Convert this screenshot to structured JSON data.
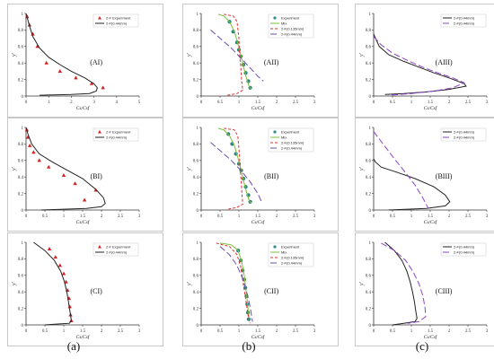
{
  "column_labels": [
    "(a)",
    "(b)",
    "(c)"
  ],
  "chart_data": [
    {
      "id": "AI",
      "type": "line",
      "panel_label": "(AI)",
      "xlabel": "Cs/Csf",
      "ylabel": "y'",
      "xlim": [
        0,
        5
      ],
      "ylim": [
        0,
        1
      ],
      "x_ticks": [
        "0",
        "1",
        "2",
        "3",
        "4",
        "5"
      ],
      "y_ticks": [
        "0",
        "0.2",
        "0.4",
        "0.6",
        "0.8",
        "1"
      ],
      "legend": "top-left",
      "series": [
        {
          "name": "2-F Experiment",
          "kind": "marker",
          "marker": "triangle",
          "color": "#d62020",
          "x": [
            0.05,
            0.15,
            0.3,
            0.5,
            0.9,
            1.5,
            2.2,
            2.9,
            3.4
          ],
          "y": [
            0.96,
            0.86,
            0.75,
            0.6,
            0.4,
            0.3,
            0.22,
            0.15,
            0.1
          ]
        },
        {
          "name": "2-F(0.44mm)",
          "kind": "line",
          "color": "#222222",
          "x": [
            0.0,
            0.05,
            0.15,
            0.3,
            0.6,
            1.0,
            1.5,
            2.0,
            2.6,
            3.0,
            3.15,
            3.1,
            2.8,
            2.0,
            0.6
          ],
          "y": [
            1.0,
            0.95,
            0.85,
            0.72,
            0.58,
            0.47,
            0.38,
            0.3,
            0.22,
            0.15,
            0.1,
            0.06,
            0.03,
            0.02,
            0.01
          ]
        }
      ]
    },
    {
      "id": "AII",
      "type": "line",
      "panel_label": "(AII)",
      "xlabel": "Cs/Csf",
      "ylabel": "y'",
      "xlim": [
        0,
        3
      ],
      "ylim": [
        0,
        1
      ],
      "x_ticks": [
        "0",
        "0.5",
        "1",
        "1.5",
        "2",
        "2.5",
        "3"
      ],
      "y_ticks": [
        "0",
        "0.2",
        "0.4",
        "0.6",
        "0.8",
        "1"
      ],
      "legend": "top-right",
      "series": [
        {
          "name": "Experiment",
          "kind": "marker",
          "marker": "circle",
          "color": "#2a8f88",
          "x": [
            0.75,
            0.85,
            0.95,
            1.0,
            1.05,
            1.12,
            1.18,
            1.25,
            1.3
          ],
          "y": [
            0.9,
            0.78,
            0.65,
            0.56,
            0.48,
            0.38,
            0.28,
            0.18,
            0.1
          ]
        },
        {
          "name": "Mix",
          "kind": "line",
          "color": "#7cbf3a",
          "x": [
            0.45,
            0.6,
            0.75,
            0.88,
            0.97,
            1.05,
            1.12,
            1.2,
            1.27,
            1.33
          ],
          "y": [
            0.99,
            0.97,
            0.9,
            0.78,
            0.64,
            0.5,
            0.36,
            0.22,
            0.12,
            0.08
          ]
        },
        {
          "name": "2-F(0.135mm)",
          "kind": "line",
          "color": "#e03030",
          "dash": "3,2",
          "x": [
            0.6,
            0.85,
            0.95,
            1.0,
            1.02,
            1.05,
            1.07,
            1.1,
            0.95,
            0.7
          ],
          "y": [
            0.99,
            0.97,
            0.9,
            0.7,
            0.5,
            0.35,
            0.2,
            0.07,
            0.03,
            0.01
          ]
        },
        {
          "name": "2-F(0.44mm)",
          "kind": "line",
          "color": "#6a4bb0",
          "dash": "7,3",
          "x": [
            0.25,
            0.5,
            0.8,
            1.05,
            1.3,
            1.5,
            1.65
          ],
          "y": [
            0.8,
            0.7,
            0.58,
            0.46,
            0.34,
            0.24,
            0.18
          ]
        }
      ]
    },
    {
      "id": "AIII",
      "type": "line",
      "panel_label": "(AIII)",
      "xlabel": "Cs/Csf",
      "ylabel": "y'",
      "xlim": [
        0,
        3
      ],
      "ylim": [
        0,
        1
      ],
      "x_ticks": [
        "0",
        "0.5",
        "1",
        "1.5",
        "2",
        "2.5",
        "3"
      ],
      "y_ticks": [
        "0",
        "0.2",
        "0.4",
        "0.6",
        "0.8",
        "1"
      ],
      "legend": "top-right",
      "series": [
        {
          "name": "2-F(0.44mm)",
          "kind": "line",
          "color": "#222222",
          "x": [
            0.0,
            0.15,
            0.4,
            0.8,
            1.2,
            1.6,
            2.0,
            2.4,
            2.45,
            2.0,
            1.4,
            0.8,
            0.3
          ],
          "y": [
            0.75,
            0.6,
            0.5,
            0.42,
            0.35,
            0.28,
            0.22,
            0.15,
            0.12,
            0.08,
            0.05,
            0.03,
            0.02
          ]
        },
        {
          "name": "2-F(0.44mm)",
          "kind": "line",
          "color": "#8e44c8",
          "dash": "7,3",
          "x": [
            0.0,
            0.2,
            0.5,
            0.9,
            1.3,
            1.7,
            2.1,
            2.4,
            2.1,
            1.6,
            1.0,
            0.4
          ],
          "y": [
            0.72,
            0.62,
            0.52,
            0.43,
            0.35,
            0.28,
            0.22,
            0.16,
            0.1,
            0.06,
            0.03,
            0.01
          ]
        }
      ]
    },
    {
      "id": "BI",
      "type": "line",
      "panel_label": "(BI)",
      "xlabel": "Cs/Csf",
      "ylabel": "y'",
      "xlim": [
        0,
        3
      ],
      "ylim": [
        0,
        1
      ],
      "x_ticks": [
        "0",
        "0.5",
        "1",
        "1.5",
        "2",
        "2.5",
        "3"
      ],
      "y_ticks": [
        "0",
        "0.2",
        "0.4",
        "0.6",
        "0.8",
        "1"
      ],
      "legend": "top-right",
      "series": [
        {
          "name": "2-F Experiment",
          "kind": "marker",
          "marker": "triangle",
          "color": "#d62020",
          "x": [
            0.02,
            0.05,
            0.1,
            0.2,
            0.35,
            0.6,
            1.0,
            1.3,
            1.55,
            1.85
          ],
          "y": [
            0.97,
            0.88,
            0.78,
            0.7,
            0.6,
            0.52,
            0.42,
            0.32,
            0.12,
            0.24
          ]
        },
        {
          "name": "2-F(0.44mm)",
          "kind": "line",
          "color": "#222222",
          "x": [
            0.0,
            0.05,
            0.15,
            0.35,
            0.7,
            1.1,
            1.5,
            1.85,
            2.05,
            2.1,
            2.0,
            1.6,
            1.0,
            0.4
          ],
          "y": [
            1.0,
            0.92,
            0.8,
            0.68,
            0.58,
            0.48,
            0.38,
            0.25,
            0.15,
            0.08,
            0.04,
            0.02,
            0.01,
            0.0
          ]
        }
      ]
    },
    {
      "id": "BII",
      "type": "line",
      "panel_label": "(BII)",
      "xlabel": "Cs/Csf",
      "ylabel": "y'",
      "xlim": [
        0,
        3
      ],
      "ylim": [
        0,
        1
      ],
      "x_ticks": [
        "0",
        "0.5",
        "1",
        "1.5",
        "2",
        "2.5",
        "3"
      ],
      "y_ticks": [
        "0",
        "0.2",
        "0.4",
        "0.6",
        "0.8",
        "1"
      ],
      "legend": "top-right",
      "series": [
        {
          "name": "Experiment",
          "kind": "marker",
          "marker": "circle",
          "color": "#2a8f88",
          "x": [
            0.72,
            0.82,
            0.92,
            1.0,
            1.06,
            1.12,
            1.18,
            1.25,
            1.3
          ],
          "y": [
            0.92,
            0.8,
            0.68,
            0.56,
            0.48,
            0.38,
            0.28,
            0.18,
            0.1
          ]
        },
        {
          "name": "Mix",
          "kind": "line",
          "color": "#7cbf3a",
          "x": [
            0.45,
            0.6,
            0.75,
            0.88,
            0.97,
            1.05,
            1.12,
            1.2,
            1.27,
            1.33
          ],
          "y": [
            0.99,
            0.97,
            0.9,
            0.78,
            0.64,
            0.5,
            0.36,
            0.22,
            0.12,
            0.08
          ]
        },
        {
          "name": "2-F(0.135mm)",
          "kind": "line",
          "color": "#e03030",
          "dash": "3,2",
          "x": [
            0.6,
            0.88,
            0.97,
            1.01,
            1.03,
            1.06,
            1.08,
            1.1,
            0.95,
            0.7
          ],
          "y": [
            0.99,
            0.97,
            0.9,
            0.7,
            0.5,
            0.35,
            0.2,
            0.07,
            0.03,
            0.01
          ]
        },
        {
          "name": "2-F(0.44mm)",
          "kind": "line",
          "color": "#6a4bb0",
          "dash": "7,3",
          "x": [
            0.25,
            0.5,
            0.8,
            1.05,
            1.3,
            1.5,
            1.62
          ],
          "y": [
            0.82,
            0.72,
            0.6,
            0.48,
            0.34,
            0.2,
            0.08
          ]
        }
      ]
    },
    {
      "id": "BIII",
      "type": "line",
      "panel_label": "(BIII)",
      "xlabel": "Cs/Csf",
      "ylabel": "y'",
      "xlim": [
        0,
        3
      ],
      "ylim": [
        0,
        1
      ],
      "x_ticks": [
        "0",
        "0.5",
        "1",
        "1.5",
        "2",
        "2.5",
        "3"
      ],
      "y_ticks": [
        "0",
        "0.2",
        "0.4",
        "0.6",
        "0.8",
        "1"
      ],
      "legend": "top-right",
      "series": [
        {
          "name": "2-F(0.44mm)",
          "kind": "line",
          "color": "#222222",
          "x": [
            0.0,
            0.05,
            0.2,
            0.6,
            1.1,
            1.6,
            1.9,
            2.02,
            1.9,
            1.4,
            0.9,
            0.4
          ],
          "y": [
            0.62,
            0.58,
            0.52,
            0.46,
            0.38,
            0.28,
            0.18,
            0.1,
            0.05,
            0.02,
            0.01,
            0.0
          ]
        },
        {
          "name": "2-F(0.44mm)",
          "kind": "line",
          "color": "#8e44c8",
          "dash": "7,3",
          "x": [
            0.0,
            0.25,
            0.55,
            0.85,
            1.1,
            1.3,
            1.45
          ],
          "y": [
            0.95,
            0.8,
            0.62,
            0.45,
            0.3,
            0.15,
            0.02
          ]
        }
      ]
    },
    {
      "id": "CI",
      "type": "line",
      "panel_label": "(CI)",
      "xlabel": "Cs/Csf",
      "ylabel": "y'",
      "xlim": [
        0,
        3
      ],
      "ylim": [
        0,
        1
      ],
      "x_ticks": [
        "0",
        "0.5",
        "1",
        "1.5",
        "2",
        "2.5",
        "3"
      ],
      "y_ticks": [
        "0",
        "0.2",
        "0.4",
        "0.6",
        "0.8",
        "1"
      ],
      "legend": "top-right",
      "series": [
        {
          "name": "2-F Experiment",
          "kind": "marker",
          "marker": "triangle",
          "color": "#d62020",
          "x": [
            0.62,
            0.78,
            0.9,
            1.0,
            1.06,
            1.1,
            1.14,
            1.16,
            1.18,
            1.2
          ],
          "y": [
            0.92,
            0.82,
            0.72,
            0.62,
            0.52,
            0.42,
            0.32,
            0.22,
            0.12,
            0.05
          ]
        },
        {
          "name": "2-F(0.44mm)",
          "kind": "line",
          "color": "#222222",
          "x": [
            0.2,
            0.5,
            0.75,
            0.92,
            1.02,
            1.08,
            1.12,
            1.15,
            1.18,
            1.2,
            1.15,
            0.8,
            0.5
          ],
          "y": [
            1.0,
            0.9,
            0.78,
            0.65,
            0.52,
            0.4,
            0.3,
            0.2,
            0.12,
            0.05,
            0.02,
            0.01,
            0.0
          ]
        }
      ]
    },
    {
      "id": "CII",
      "type": "line",
      "panel_label": "(CII)",
      "xlabel": "Cs/Csf",
      "ylabel": "y'",
      "xlim": [
        0,
        3
      ],
      "ylim": [
        0,
        1
      ],
      "x_ticks": [
        "0",
        "0.5",
        "1",
        "1.5",
        "2",
        "2.5",
        "3"
      ],
      "y_ticks": [
        "0",
        "0.2",
        "0.4",
        "0.6",
        "0.8",
        "1"
      ],
      "legend": "top-right",
      "series": [
        {
          "name": "Experiment",
          "kind": "marker",
          "marker": "circle",
          "color": "#2a8f88",
          "x": [
            0.98,
            1.05,
            1.1,
            1.14,
            1.17,
            1.2,
            1.22,
            1.24,
            1.26
          ],
          "y": [
            0.9,
            0.78,
            0.66,
            0.55,
            0.45,
            0.35,
            0.25,
            0.15,
            0.07
          ]
        },
        {
          "name": "Mix",
          "kind": "line",
          "color": "#7cbf3a",
          "x": [
            0.5,
            0.8,
            0.98,
            1.08,
            1.14,
            1.18,
            1.22,
            1.25,
            1.28
          ],
          "y": [
            0.99,
            0.97,
            0.9,
            0.75,
            0.6,
            0.45,
            0.3,
            0.15,
            0.05
          ]
        },
        {
          "name": "2-F(0.135mm)",
          "kind": "line",
          "color": "#e03030",
          "dash": "3,2",
          "x": [
            0.4,
            0.75,
            0.95,
            1.05,
            1.1,
            1.15,
            1.2,
            1.25,
            1.3
          ],
          "y": [
            0.99,
            0.95,
            0.85,
            0.7,
            0.55,
            0.4,
            0.25,
            0.1,
            0.02
          ]
        },
        {
          "name": "2-F(0.44mm)",
          "kind": "line",
          "color": "#6a4bb0",
          "dash": "7,3",
          "x": [
            0.5,
            0.75,
            0.95,
            1.08,
            1.18,
            1.26,
            1.32,
            1.36
          ],
          "y": [
            0.95,
            0.85,
            0.72,
            0.58,
            0.44,
            0.3,
            0.16,
            0.04
          ]
        }
      ]
    },
    {
      "id": "CIII",
      "type": "line",
      "panel_label": "(CIII)",
      "xlabel": "Cs/Csf",
      "ylabel": "y'",
      "xlim": [
        0,
        3
      ],
      "ylim": [
        0,
        1
      ],
      "x_ticks": [
        "0",
        "0.5",
        "1",
        "1.5",
        "2",
        "2.5",
        "3"
      ],
      "y_ticks": [
        "0",
        "0.2",
        "0.4",
        "0.6",
        "0.8",
        "1"
      ],
      "legend": "top-right",
      "series": [
        {
          "name": "2-F(0.44mm)",
          "kind": "line",
          "color": "#222222",
          "x": [
            0.3,
            0.55,
            0.75,
            0.88,
            0.97,
            1.03,
            1.08,
            1.12,
            1.15,
            1.1,
            0.8,
            0.5
          ],
          "y": [
            1.0,
            0.9,
            0.78,
            0.65,
            0.52,
            0.4,
            0.28,
            0.16,
            0.08,
            0.04,
            0.02,
            0.0
          ]
        },
        {
          "name": "2-F(0.44mm)",
          "kind": "line",
          "color": "#8e44c8",
          "dash": "7,3",
          "x": [
            0.2,
            0.55,
            0.85,
            1.05,
            1.2,
            1.3,
            1.36,
            1.38,
            1.2,
            0.9
          ],
          "y": [
            0.99,
            0.9,
            0.78,
            0.64,
            0.5,
            0.36,
            0.22,
            0.1,
            0.04,
            0.02
          ]
        }
      ]
    }
  ]
}
